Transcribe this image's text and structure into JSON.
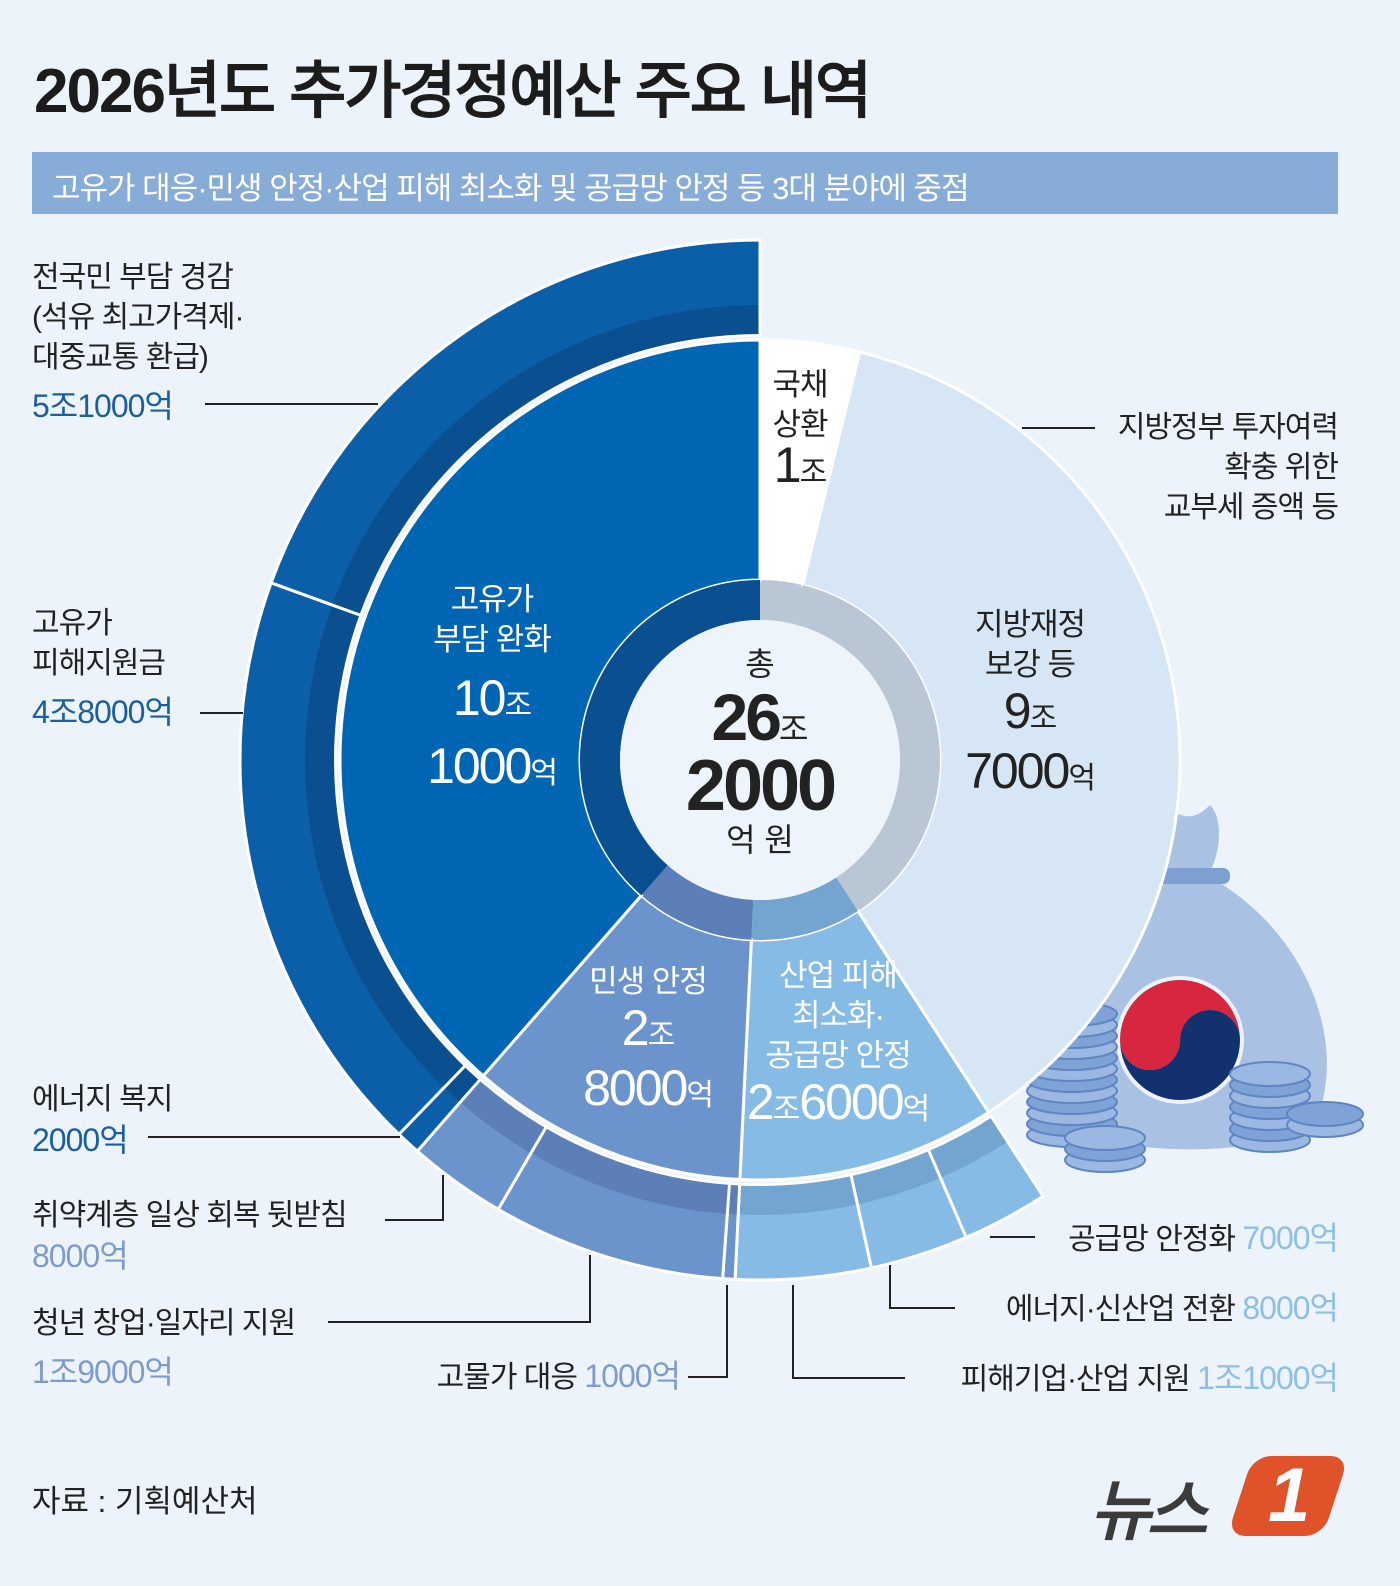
{
  "title": "2026년도 추가경정예산 주요 내역",
  "subtitle": "고유가 대응·민생 안정·산업 피해 최소화 및 공급망 안정 등 3대 분야에 중점",
  "center": {
    "prefix": "총",
    "line1": "26",
    "unit1": "조",
    "line2": "2000",
    "unit2": "억 원"
  },
  "source": "자료 : 기획예산처",
  "logo": {
    "text": "뉴스1",
    "word": "뉴스",
    "digit": "1",
    "color": "#e0522a"
  },
  "colors": {
    "background": "#edf3fb",
    "subtitle_bar": "#88acd8",
    "goyuga": "#0066b3",
    "minsaeng": "#6b93cc",
    "saneop": "#86bbe5",
    "jibang": "#d6e6f5",
    "gukchae": "#ffffff"
  },
  "chart_data": {
    "type": "sunburst",
    "unit": "억원",
    "total": 262000,
    "inner": [
      {
        "key": "gukchae",
        "label": [
          "국채",
          "상환"
        ],
        "value": 10000,
        "num1": "1",
        "unit1": "조",
        "num2": "",
        "unit2": "",
        "color": "#ffffff"
      },
      {
        "key": "jibang",
        "label": [
          "지방재정",
          "보강 등"
        ],
        "value": 97000,
        "num1": "9",
        "unit1": "조",
        "num2": "7000",
        "unit2": "억",
        "color": "#d6e6f5"
      },
      {
        "key": "saneop",
        "label": [
          "산업 피해",
          "최소화·",
          "공급망 안정"
        ],
        "value": 26000,
        "num1": "2",
        "unit1": "조",
        "num2": "6000",
        "unit2": "억",
        "color": "#86bbe5"
      },
      {
        "key": "minsaeng",
        "label": [
          "민생 안정"
        ],
        "value": 28000,
        "num1": "2",
        "unit1": "조",
        "num2": "8000",
        "unit2": "억",
        "color": "#6b93cc"
      },
      {
        "key": "goyuga",
        "label": [
          "고유가",
          "부담 완화"
        ],
        "value": 101000,
        "num1": "10",
        "unit1": "조",
        "num2": "1000",
        "unit2": "억",
        "color": "#0066b3"
      }
    ],
    "outer": [
      {
        "parent": "saneop",
        "label": "공급망 안정화",
        "value": 7000,
        "value_text": "7000억"
      },
      {
        "parent": "saneop",
        "label": "에너지·신산업 전환",
        "value": 8000,
        "value_text": "8000억"
      },
      {
        "parent": "saneop",
        "label": "피해기업·산업 지원",
        "value": 11000,
        "value_text": "1조1000억"
      },
      {
        "parent": "minsaeng",
        "label": "고물가 대응",
        "value": 1000,
        "value_text": "1000억"
      },
      {
        "parent": "minsaeng",
        "label": "청년 창업·일자리 지원",
        "value": 19000,
        "value_text": "1조9000억"
      },
      {
        "parent": "minsaeng",
        "label": "취약계층 일상 회복 뒷받침",
        "value": 8000,
        "value_text": "8000억"
      },
      {
        "parent": "goyuga",
        "label": "에너지 복지",
        "value": 2000,
        "value_text": "2000억"
      },
      {
        "parent": "goyuga",
        "label": "고유가 피해지원금",
        "label_lines": [
          "고유가",
          "피해지원금"
        ],
        "value": 48000,
        "value_text": "4조8000억"
      },
      {
        "parent": "goyuga",
        "label": "전국민 부담 경감 (석유 최고가격제·대중교통 환급)",
        "label_lines": [
          "전국민 부담 경감",
          "(석유 최고가격제·",
          "대중교통 환급)"
        ],
        "value": 51000,
        "value_text": "5조1000억"
      }
    ],
    "jibang_note": [
      "지방정부 투자여력",
      "확충 위한",
      "교부세 증액 등"
    ]
  }
}
